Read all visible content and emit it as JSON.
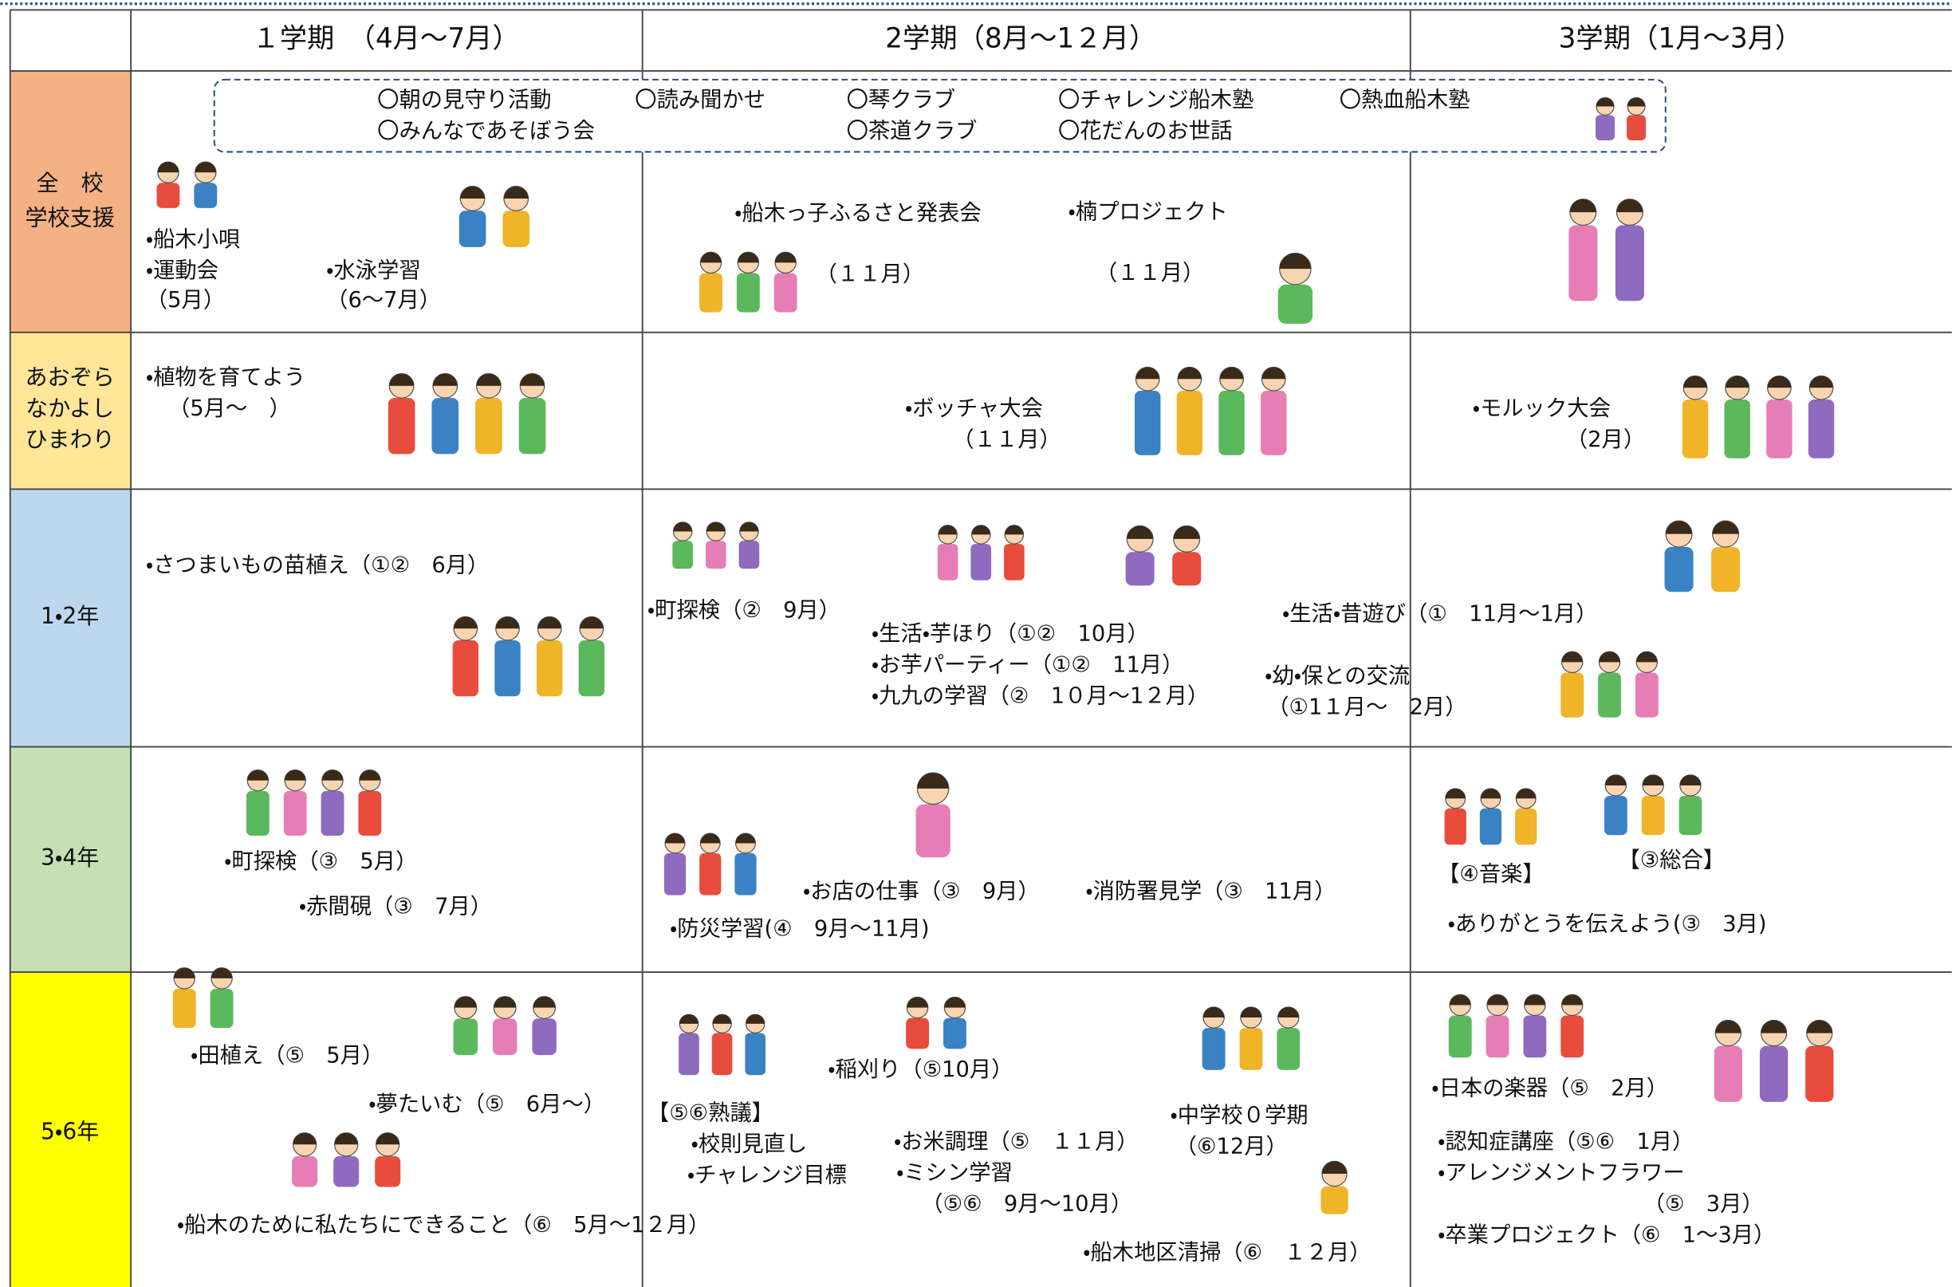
{
  "header": {
    "columns": [
      "１学期　（4月～7月）",
      "2学期（8月～1２月）",
      "3学期（1月～3月）"
    ]
  },
  "dashed_box": {
    "items": [
      "〇朝の見守り活動",
      "〇みんなであそぼう会",
      "〇読み聞かせ",
      "〇琴クラブ",
      "〇茶道クラブ",
      "〇チャレンジ船木塾",
      "〇花だんのお世話",
      "〇熱血船木塾"
    ]
  },
  "rows": [
    {
      "label": [
        "全　校",
        "学校支援"
      ],
      "items": [
        "・船木小唄",
        "・運動会",
        "（5月）",
        "・水泳学習",
        "（6～7月）",
        "・船木っ子ふるさと発表会",
        "・楠プロジェクト",
        "（１１月）",
        "（１１月）"
      ]
    },
    {
      "label": [
        "あおぞら",
        "なかよし",
        "ひまわり"
      ],
      "items": [
        "・植物を育てよう",
        "（5月～　）",
        "・ボッチャ大会",
        "（１１月）",
        "・モルック大会",
        "（2月）"
      ]
    },
    {
      "label": [
        "1・2年"
      ],
      "items": [
        "・さつまいもの苗植え（①②　6月）",
        "・町探検（②　9月）",
        "・生活・芋ほり（①②　10月）",
        "・お芋パーティー（①②　11月）",
        "・九九の学習（②　1０月～1２月）",
        "・生活・昔遊び（①　11月～1月）",
        "・幼・保との交流",
        "（①1１月～　2月）"
      ]
    },
    {
      "label": [
        "3・4年"
      ],
      "items": [
        "・町探検（③　5月）",
        "・赤間硯（③　7月）",
        "・お店の仕事（③　9月）",
        "・消防署見学（③　11月）",
        "・防災学習(④　9月～11月)",
        "【④音楽】",
        "【③総合】",
        "・ありがとうを伝えよう(③　3月)"
      ]
    },
    {
      "label": [
        "5・6年"
      ],
      "items": [
        "・田植え（⑤　5月）",
        "・夢たいむ（⑤　6月～）",
        "・船木のために私たちにできること（⑥　5月～1２月）",
        "【⑤⑥熟議】",
        "・校則見直し",
        "・チャレンジ目標",
        "・稲刈り（⑤10月）",
        "・お米調理（⑤　１１月）",
        "・ミシン学習",
        "（⑤⑥　9月～10月）",
        "・中学校０学期",
        "（⑥12月）",
        "・船木地区清掃（⑥　１２月）",
        "・日本の楽器（⑤　2月）",
        "・認知症講座（⑤⑥　1月）",
        "・アレンジメントフラワー",
        "（⑤　3月）",
        "・卒業プロジェクト（⑥　1～3月）"
      ]
    }
  ]
}
